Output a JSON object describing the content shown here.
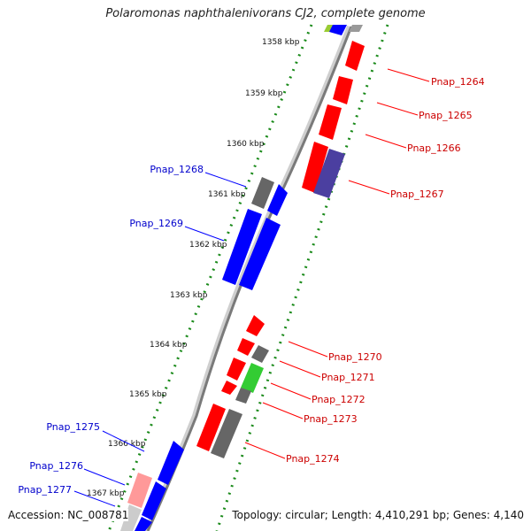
{
  "title": "Polaromonas naphthalenivorans CJ2, complete genome",
  "footer": {
    "accession": "Accession: NC_008781",
    "summary": "Topology: circular; Length: 4,410,291 bp; Genes: 4,140"
  },
  "ruler_labels": [
    {
      "name": "tick-1358",
      "text": "1358 kbp"
    },
    {
      "name": "tick-1359",
      "text": "1359 kbp"
    },
    {
      "name": "tick-1360",
      "text": "1360 kbp"
    },
    {
      "name": "tick-1361",
      "text": "1361 kbp"
    },
    {
      "name": "tick-1362",
      "text": "1362 kbp"
    },
    {
      "name": "tick-1363",
      "text": "1363 kbp"
    },
    {
      "name": "tick-1364",
      "text": "1364 kbp"
    },
    {
      "name": "tick-1365",
      "text": "1365 kbp"
    },
    {
      "name": "tick-1366",
      "text": "1366 kbp"
    },
    {
      "name": "tick-1367",
      "text": "1367 kbp"
    }
  ],
  "gene_labels_reverse": [
    "Pnap_1268",
    "Pnap_1269",
    "Pnap_1275",
    "Pnap_1276",
    "Pnap_1277"
  ],
  "gene_labels_forward": [
    "Pnap_1264",
    "Pnap_1265",
    "Pnap_1266",
    "Pnap_1267",
    "Pnap_1270",
    "Pnap_1271",
    "Pnap_1272",
    "Pnap_1273",
    "Pnap_1274"
  ],
  "colors": {
    "forward_gene": "#ff0000",
    "reverse_gene": "#0000ff",
    "gray_gene": "#666666",
    "green_gene": "#33cc33",
    "purple_gene": "#4b3fa0",
    "backbone": "#888888",
    "ruler_dots": "#1a8a1a",
    "forward_label": "#cc0000",
    "reverse_label": "#0000cc"
  }
}
